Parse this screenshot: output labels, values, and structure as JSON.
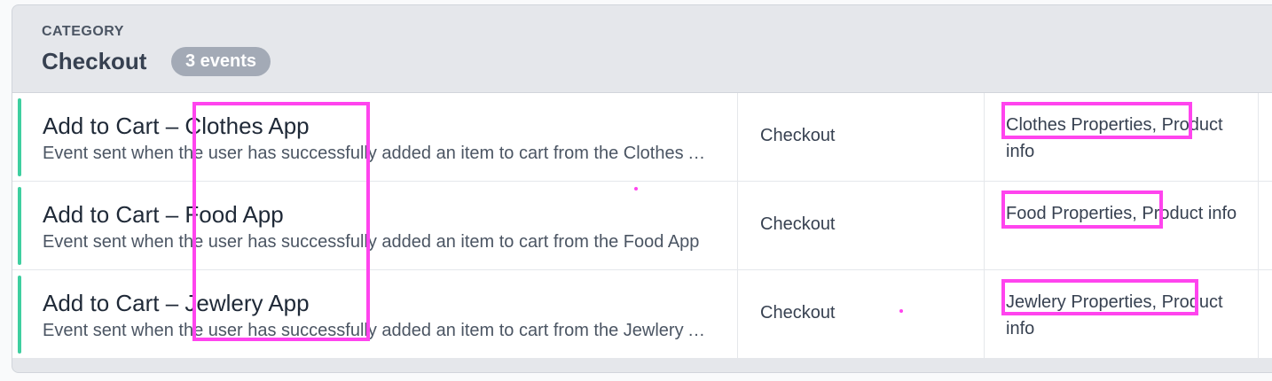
{
  "category": {
    "label": "CATEGORY",
    "title": "Checkout",
    "count_badge": "3 events"
  },
  "events": [
    {
      "name": "Add to Cart – Clothes App",
      "description": "Event sent when the user has successfully added an item to cart from the Clothes App",
      "category": "Checkout",
      "properties": "Clothes Properties, Product info"
    },
    {
      "name": "Add to Cart – Food App",
      "description": "Event sent when the user has successfully added an item to cart from the Food App",
      "category": "Checkout",
      "properties": "Food Properties, Product info"
    },
    {
      "name": "Add to Cart – Jewlery App",
      "description": "Event sent when the user has successfully added an item to cart from the Jewlery App",
      "category": "Checkout",
      "properties": "Jewlery Properties, Product info"
    }
  ],
  "colors": {
    "accent_bar": "#3fcfa0",
    "highlight": "#ff44ee",
    "badge": "#a3aab6"
  }
}
